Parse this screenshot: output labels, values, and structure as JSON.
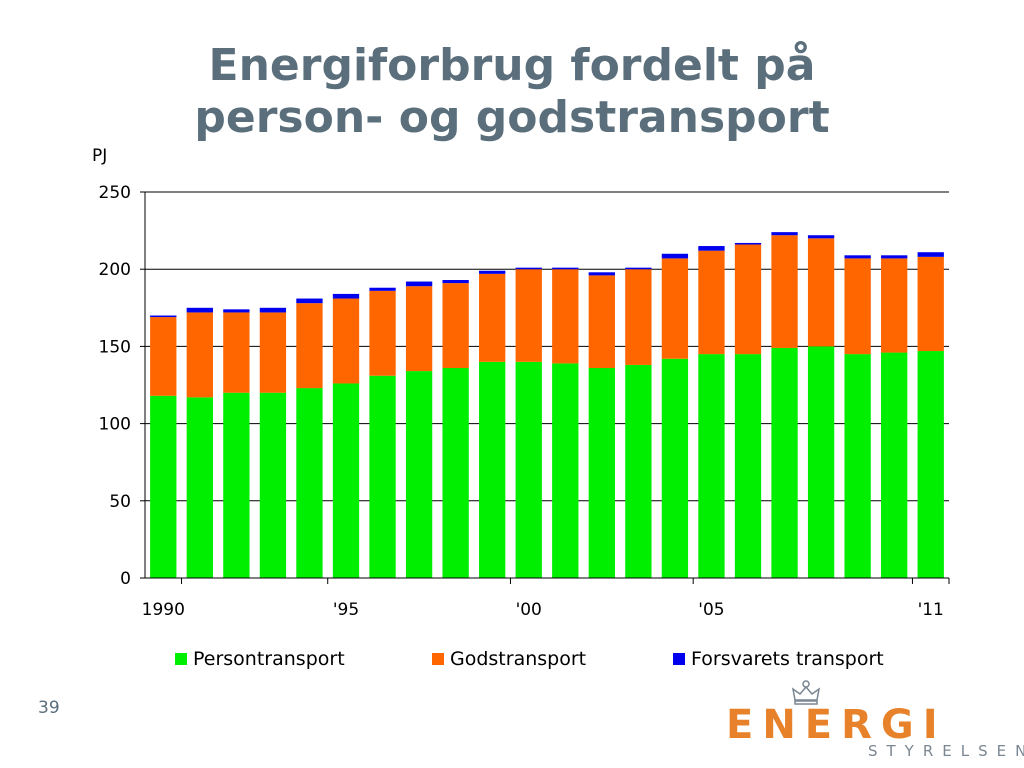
{
  "slide": {
    "title_line1": "Energiforbrug fordelt på",
    "title_line2": "person- og godstransport",
    "page_number": "39"
  },
  "logo": {
    "word": "ENERGI",
    "subword": "STYRELSEN"
  },
  "colors": {
    "title": "#5a6e7c",
    "persontransport": "#00ee00",
    "godstransport": "#ff6600",
    "forsvarets_transport": "#0000ee",
    "logo_orange": "#e8822a"
  },
  "chart_data": {
    "type": "bar",
    "stacked": true,
    "ylabel": "PJ",
    "ylim": [
      0,
      250
    ],
    "yticks": [
      0,
      50,
      100,
      150,
      200,
      250
    ],
    "grid": true,
    "legend_position": "bottom",
    "categories": [
      "1990",
      "1991",
      "1992",
      "1993",
      "1994",
      "1995",
      "1996",
      "1997",
      "1998",
      "1999",
      "2000",
      "2001",
      "2002",
      "2003",
      "2004",
      "2005",
      "2006",
      "2007",
      "2008",
      "2009",
      "2010",
      "2011"
    ],
    "xtick_labels": [
      {
        "index": 0,
        "label": "1990"
      },
      {
        "index": 5,
        "label": "'95"
      },
      {
        "index": 10,
        "label": "'00"
      },
      {
        "index": 15,
        "label": "'05"
      },
      {
        "index": 21,
        "label": "'11"
      }
    ],
    "series": [
      {
        "name": "Persontransport",
        "color": "#00ee00",
        "values": [
          118,
          117,
          120,
          120,
          123,
          126,
          131,
          134,
          136,
          140,
          140,
          139,
          136,
          138,
          142,
          145,
          145,
          149,
          150,
          145,
          146,
          147
        ]
      },
      {
        "name": "Godstransport",
        "color": "#ff6600",
        "values": [
          51,
          55,
          52,
          52,
          55,
          55,
          55,
          55,
          55,
          57,
          60,
          61,
          60,
          62,
          65,
          67,
          71,
          73,
          70,
          62,
          61,
          61
        ]
      },
      {
        "name": "Forsvarets transport",
        "color": "#0000ee",
        "values": [
          1,
          3,
          2,
          3,
          3,
          3,
          2,
          3,
          2,
          2,
          1,
          1,
          2,
          1,
          3,
          3,
          1,
          2,
          2,
          2,
          2,
          3
        ]
      }
    ]
  }
}
